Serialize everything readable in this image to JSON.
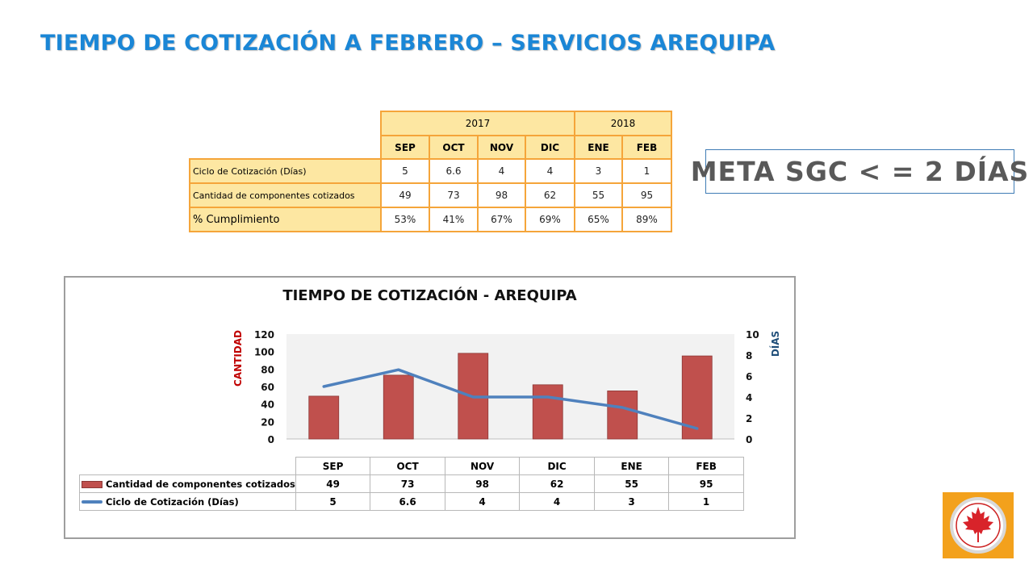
{
  "page": {
    "title": "TIEMPO DE COTIZACIÓN A FEBRERO – SERVICIOS AREQUIPA",
    "meta": "META SGC < = 2 DÍAS"
  },
  "summary_table": {
    "years": [
      {
        "label": "2017",
        "span": 4
      },
      {
        "label": "2018",
        "span": 2
      }
    ],
    "months": [
      "SEP",
      "OCT",
      "NOV",
      "DIC",
      "ENE",
      "FEB"
    ],
    "rows": [
      {
        "label": "Ciclo de Cotización (Días)",
        "values": [
          "5",
          "6.6",
          "4",
          "4",
          "3",
          "1"
        ]
      },
      {
        "label": "Cantidad de componentes cotizados",
        "values": [
          "49",
          "73",
          "98",
          "62",
          "55",
          "95"
        ]
      },
      {
        "label": "% Cumplimiento",
        "values": [
          "53%",
          "41%",
          "67%",
          "69%",
          "65%",
          "89%"
        ]
      }
    ]
  },
  "colors": {
    "title_blue": "#1a86d6",
    "table_border": "#f5a53a",
    "table_fill": "#fde7a2",
    "bar_red": "#c0504d",
    "line_blue": "#4f81bd",
    "left_axis_red": "#c00000",
    "right_axis_blue": "#1f4e79",
    "logo_orange": "#f3a11c"
  },
  "chart_data": {
    "type": "bar",
    "title": "TIEMPO DE COTIZACIÓN - AREQUIPA",
    "categories": [
      "SEP",
      "OCT",
      "NOV",
      "DIC",
      "ENE",
      "FEB"
    ],
    "ylabel": "CANTIDAD",
    "ylabel_right": "DÍAS",
    "ylim": [
      0,
      120
    ],
    "ylim_right": [
      0,
      10
    ],
    "yticks": [
      "0",
      "20",
      "40",
      "60",
      "80",
      "100",
      "120"
    ],
    "yticks_right": [
      "0",
      "2",
      "4",
      "6",
      "8",
      "10"
    ],
    "grid": false,
    "legend": "data-table",
    "series": [
      {
        "name": "Cantidad de componentes cotizados",
        "type": "bar",
        "axis": "left",
        "values": [
          49,
          73,
          98,
          62,
          55,
          95
        ],
        "labels": [
          "49",
          "73",
          "98",
          "62",
          "55",
          "95"
        ]
      },
      {
        "name": "Ciclo de Cotización (Días)",
        "type": "line",
        "axis": "right",
        "values": [
          5,
          6.6,
          4,
          4,
          3,
          1
        ],
        "labels": [
          "5",
          "6.6",
          "4",
          "4",
          "3",
          "1"
        ]
      }
    ]
  }
}
